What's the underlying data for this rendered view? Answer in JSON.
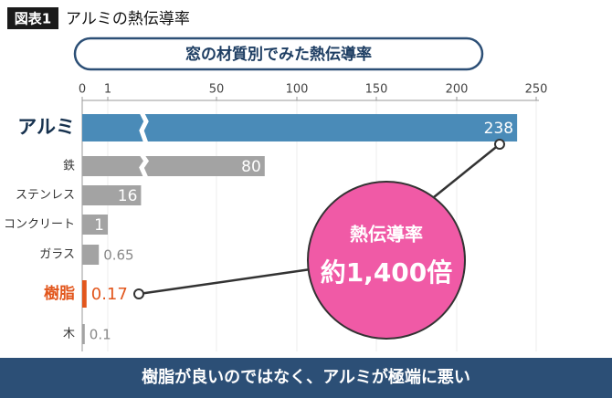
{
  "chart_data": {
    "type": "bar",
    "figure_label": "図表1",
    "title": "アルミの熱伝導率",
    "subtitle": "窓の材質別でみた熱伝導率",
    "categories": [
      "アルミ",
      "鉄",
      "ステンレス",
      "コンクリート",
      "ガラス",
      "樹脂",
      "木"
    ],
    "values": [
      238,
      80,
      16,
      1,
      0.65,
      0.17,
      0.1
    ],
    "colors": [
      "#4a8bb8",
      "#a3a3a3",
      "#a3a3a3",
      "#a3a3a3",
      "#a3a3a3",
      "#e2561c",
      "#a3a3a3"
    ],
    "xlim": [
      0,
      250
    ],
    "xticks": [
      0,
      1,
      50,
      100,
      150,
      200,
      250
    ],
    "callout": {
      "line1": "熱伝導率",
      "line2": "約1,400倍"
    },
    "footer": "樹脂が良いのではなく、アルミが極端に悪い"
  }
}
